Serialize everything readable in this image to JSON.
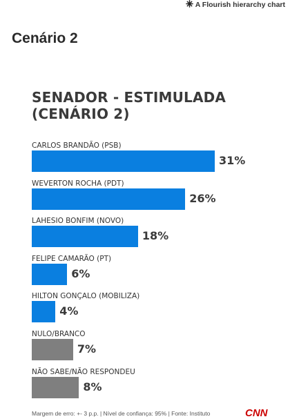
{
  "credit": {
    "text": "A Flourish hierarchy chart",
    "icon": "flourish-star-icon"
  },
  "page_title": "Cenário 2",
  "footer": "Margem de erro: +- 3 p.p. | Nível de confiança: 95% | Fonte: Instituto",
  "logo_text": "CNN",
  "chart_data": {
    "type": "bar",
    "orientation": "horizontal",
    "title": "SENADOR - ESTIMULADA (CENÁRIO 2)",
    "xlabel": "",
    "ylabel": "",
    "xlim": [
      0,
      35
    ],
    "categories": [
      "CARLOS BRANDÃO (PSB)",
      "WEVERTON ROCHA (PDT)",
      "LAHESIO BONFIM (NOVO)",
      "FELIPE CAMARÃO (PT)",
      "HILTON GONÇALO (MOBILIZA)",
      "NULO/BRANCO",
      "NÃO SABE/NÃO RESPONDEU"
    ],
    "values": [
      31,
      26,
      18,
      6,
      4,
      7,
      8
    ],
    "value_labels": [
      "31%",
      "26%",
      "18%",
      "6%",
      "4%",
      "7%",
      "8%"
    ],
    "colors": [
      "#0a7fe0",
      "#0a7fe0",
      "#0a7fe0",
      "#0a7fe0",
      "#0a7fe0",
      "#7f7f7f",
      "#7f7f7f"
    ],
    "grid": false,
    "legend": "none"
  }
}
